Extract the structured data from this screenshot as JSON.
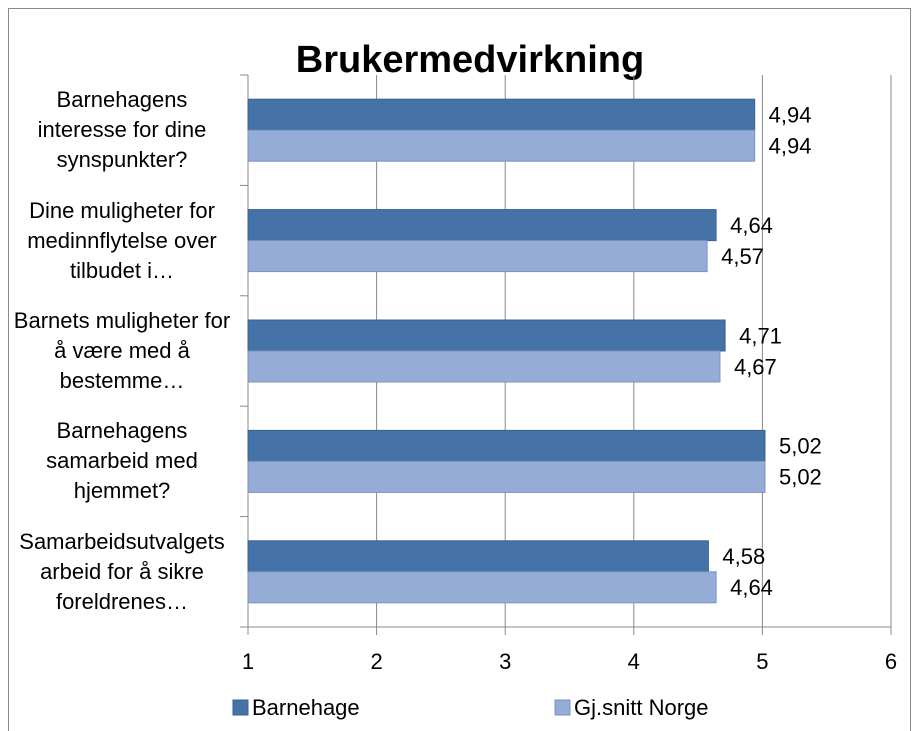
{
  "chart_data": {
    "type": "bar",
    "orientation": "horizontal",
    "title": "Brukermedvirkning",
    "categories": [
      "Barnehagens interesse for dine synspunkter?",
      "Dine muligheter for medinnflytelse over tilbudet i…",
      "Barnets muligheter for å være med å bestemme…",
      "Barnehagens samarbeid med hjemmet?",
      "Samarbeidsutvalgets arbeid for å sikre foreldrenes…"
    ],
    "series": [
      {
        "name": "Barnehage",
        "color": "#4572a7",
        "values": [
          4.94,
          4.64,
          4.71,
          5.02,
          4.58
        ],
        "value_labels": [
          "4,94",
          "4,64",
          "4,71",
          "5,02",
          "4,58"
        ]
      },
      {
        "name": "Gj.snitt Norge",
        "color": "#95add6",
        "values": [
          4.94,
          4.57,
          4.67,
          5.02,
          4.64
        ],
        "value_labels": [
          "4,94",
          "4,57",
          "4,67",
          "5,02",
          "4,64"
        ]
      }
    ],
    "xlim": [
      1,
      6
    ],
    "xticks": [
      1,
      2,
      3,
      4,
      5,
      6
    ],
    "grid": true,
    "legend": "bottom"
  }
}
